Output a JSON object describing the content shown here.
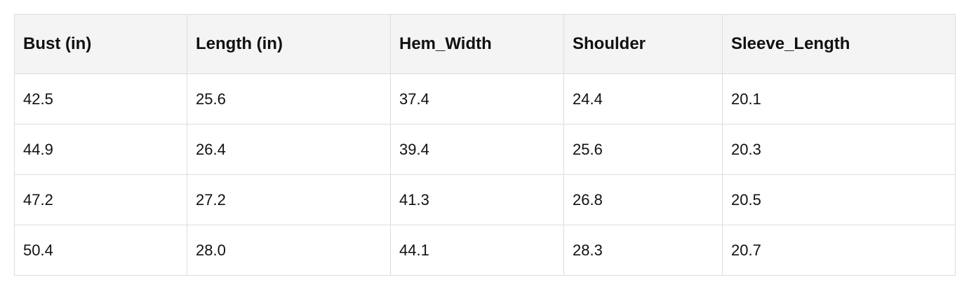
{
  "table": {
    "header": [
      "Bust (in)",
      "Length (in)",
      "Hem_Width",
      "Shoulder",
      "Sleeve_Length"
    ],
    "rows": [
      [
        "42.5",
        "25.6",
        "37.4",
        "24.4",
        "20.1"
      ],
      [
        "44.9",
        "26.4",
        "39.4",
        "25.6",
        "20.3"
      ],
      [
        "47.2",
        "27.2",
        "41.3",
        "26.8",
        "20.5"
      ],
      [
        "50.4",
        "28.0",
        "44.1",
        "28.3",
        "20.7"
      ]
    ]
  }
}
